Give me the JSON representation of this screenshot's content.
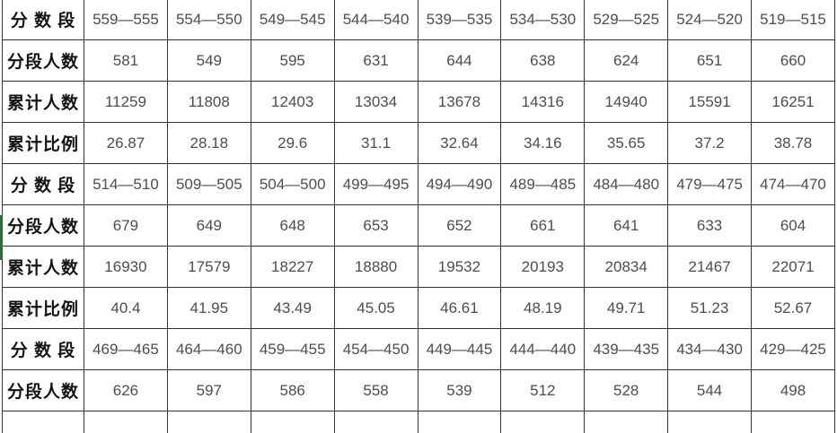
{
  "colors": {
    "accent_green": "#2e6b3f",
    "grid_line": "#333333",
    "label_text": "#141414",
    "value_text": "#4d4d4d",
    "background": "#ffffff"
  },
  "table": {
    "rows": [
      {
        "label": "分 数 段",
        "values": [
          "559—555",
          "554—550",
          "549—545",
          "544—540",
          "539—535",
          "534—530",
          "529—525",
          "524—520",
          "519—515"
        ]
      },
      {
        "label": "分段人数",
        "values": [
          581,
          549,
          595,
          631,
          644,
          638,
          624,
          651,
          660
        ]
      },
      {
        "label": "累计人数",
        "values": [
          11259,
          11808,
          12403,
          13034,
          13678,
          14316,
          14940,
          15591,
          16251
        ]
      },
      {
        "label": "累计比例",
        "values": [
          26.87,
          28.18,
          29.6,
          31.1,
          32.64,
          34.16,
          35.65,
          37.2,
          38.78
        ]
      },
      {
        "label": "分 数 段",
        "values": [
          "514—510",
          "509—505",
          "504—500",
          "499—495",
          "494—490",
          "489—485",
          "484—480",
          "479—475",
          "474—470"
        ]
      },
      {
        "label": "分段人数",
        "values": [
          679,
          649,
          648,
          653,
          652,
          661,
          641,
          633,
          604
        ]
      },
      {
        "label": "累计人数",
        "values": [
          16930,
          17579,
          18227,
          18880,
          19532,
          20193,
          20834,
          21467,
          22071
        ]
      },
      {
        "label": "累计比例",
        "values": [
          40.4,
          41.95,
          43.49,
          45.05,
          46.61,
          48.19,
          49.71,
          51.23,
          52.67
        ]
      },
      {
        "label": "分 数 段",
        "values": [
          "469—465",
          "464—460",
          "459—455",
          "454—450",
          "449—445",
          "444—440",
          "439—435",
          "434—430",
          "429—425"
        ]
      },
      {
        "label": "分段人数",
        "values": [
          626,
          597,
          586,
          558,
          539,
          512,
          528,
          544,
          498
        ]
      }
    ]
  }
}
